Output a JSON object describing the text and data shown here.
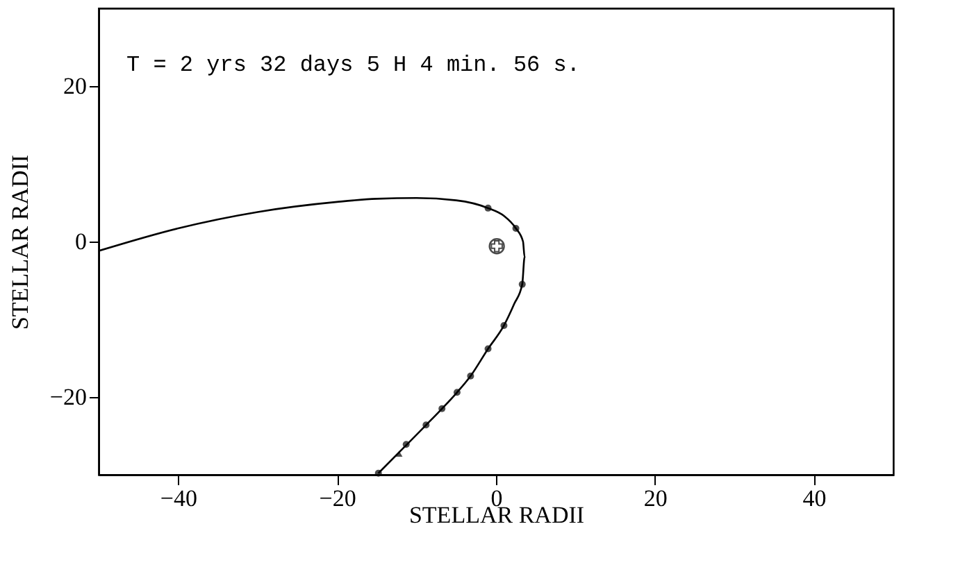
{
  "chart_data": {
    "type": "line",
    "xlabel": "STELLAR RADII",
    "ylabel": "STELLAR RADII",
    "annotations": [
      "T = 2 yrs 32 days 5 H 4 min. 56 s."
    ],
    "xlim": [
      -50,
      50
    ],
    "ylim": [
      -30,
      30
    ],
    "xticks": [
      -40,
      -20,
      0,
      20,
      40
    ],
    "yticks": [
      -20,
      0,
      20
    ],
    "grid": false,
    "series": [
      {
        "color": "#000000",
        "marker": "none",
        "line_style": "solid",
        "x": [
          -50,
          -40,
          -30,
          -20,
          -15,
          -10,
          -5,
          -1,
          1,
          2.5,
          3.4,
          3.6,
          3.3,
          2.3,
          1,
          -1,
          -3.2,
          -4.9,
          -6.8,
          -8.8,
          -11.5,
          -14.8
        ],
        "values": [
          -1.2,
          1.7,
          3.8,
          5.1,
          5.5,
          5.6,
          5.3,
          4.3,
          3.3,
          1.7,
          0,
          -2,
          -5.5,
          -8,
          -10.8,
          -13.8,
          -17.3,
          -19.4,
          -21.5,
          -23.6,
          -26.4,
          -29.8
        ]
      },
      {
        "type": "scatter",
        "color": "#000000",
        "marker": "circle",
        "x": [
          -1,
          2.5,
          3.3,
          1,
          -1,
          -3.2,
          -4.9,
          -6.8,
          -8.8,
          -11.3,
          -14.8
        ],
        "values": [
          4.3,
          1.7,
          -5.5,
          -10.8,
          -13.8,
          -17.3,
          -19.4,
          -21.5,
          -23.6,
          -26.1,
          -29.8
        ]
      },
      {
        "type": "scatter",
        "color": "#000000",
        "marker": "triangle",
        "x": [
          -12.2
        ],
        "values": [
          -27.3
        ]
      },
      {
        "type": "scatter",
        "color": "#000000",
        "marker": "cross",
        "x": [
          0.1
        ],
        "values": [
          -0.6
        ]
      }
    ]
  }
}
